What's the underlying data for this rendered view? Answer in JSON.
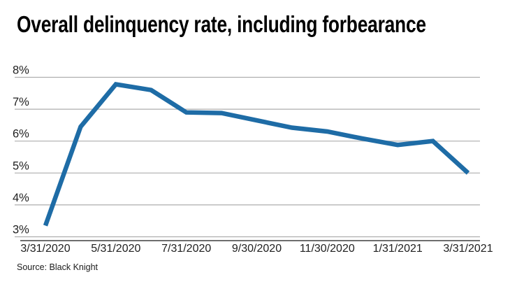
{
  "page": {
    "title": "Overall delinquency rate, including forbearance",
    "source": "Source: Black Knight"
  },
  "chart_data": {
    "type": "line",
    "title": "Overall delinquency rate, including forbearance",
    "source_note": "Source: Black Knight",
    "unit": "%",
    "categories": [
      "3/31/2020",
      "4/30/2020",
      "5/31/2020",
      "6/30/2020",
      "7/31/2020",
      "8/31/2020",
      "9/30/2020",
      "10/31/2020",
      "11/30/2020",
      "12/31/2020",
      "1/31/2021",
      "2/28/2021",
      "3/31/2021"
    ],
    "values": [
      3.35,
      6.45,
      7.78,
      7.6,
      6.9,
      6.88,
      6.65,
      6.42,
      6.3,
      6.08,
      5.88,
      6.0,
      5.0
    ],
    "xlabel": "",
    "ylabel": "",
    "ylim": [
      3,
      8
    ],
    "ytick_values": [
      8,
      7,
      6,
      5,
      4,
      3
    ],
    "ytick_labels": [
      "8%",
      "7%",
      "6%",
      "5%",
      "4%",
      "3%"
    ],
    "xtick_indices": [
      0,
      2,
      4,
      6,
      8,
      10,
      12
    ],
    "xtick_labels": [
      "3/31/2020",
      "5/31/2020",
      "7/31/2020",
      "9/30/2020",
      "11/30/2020",
      "1/31/2021",
      "3/31/2021"
    ],
    "grid": true,
    "legend": "none",
    "line_color": "#1e6ca6",
    "grid_color": "#aeaeae",
    "axis_color": "#6e6e6e",
    "tick_color": "#1f1f1f",
    "title_color": "#000000",
    "line_width": 6.5
  }
}
